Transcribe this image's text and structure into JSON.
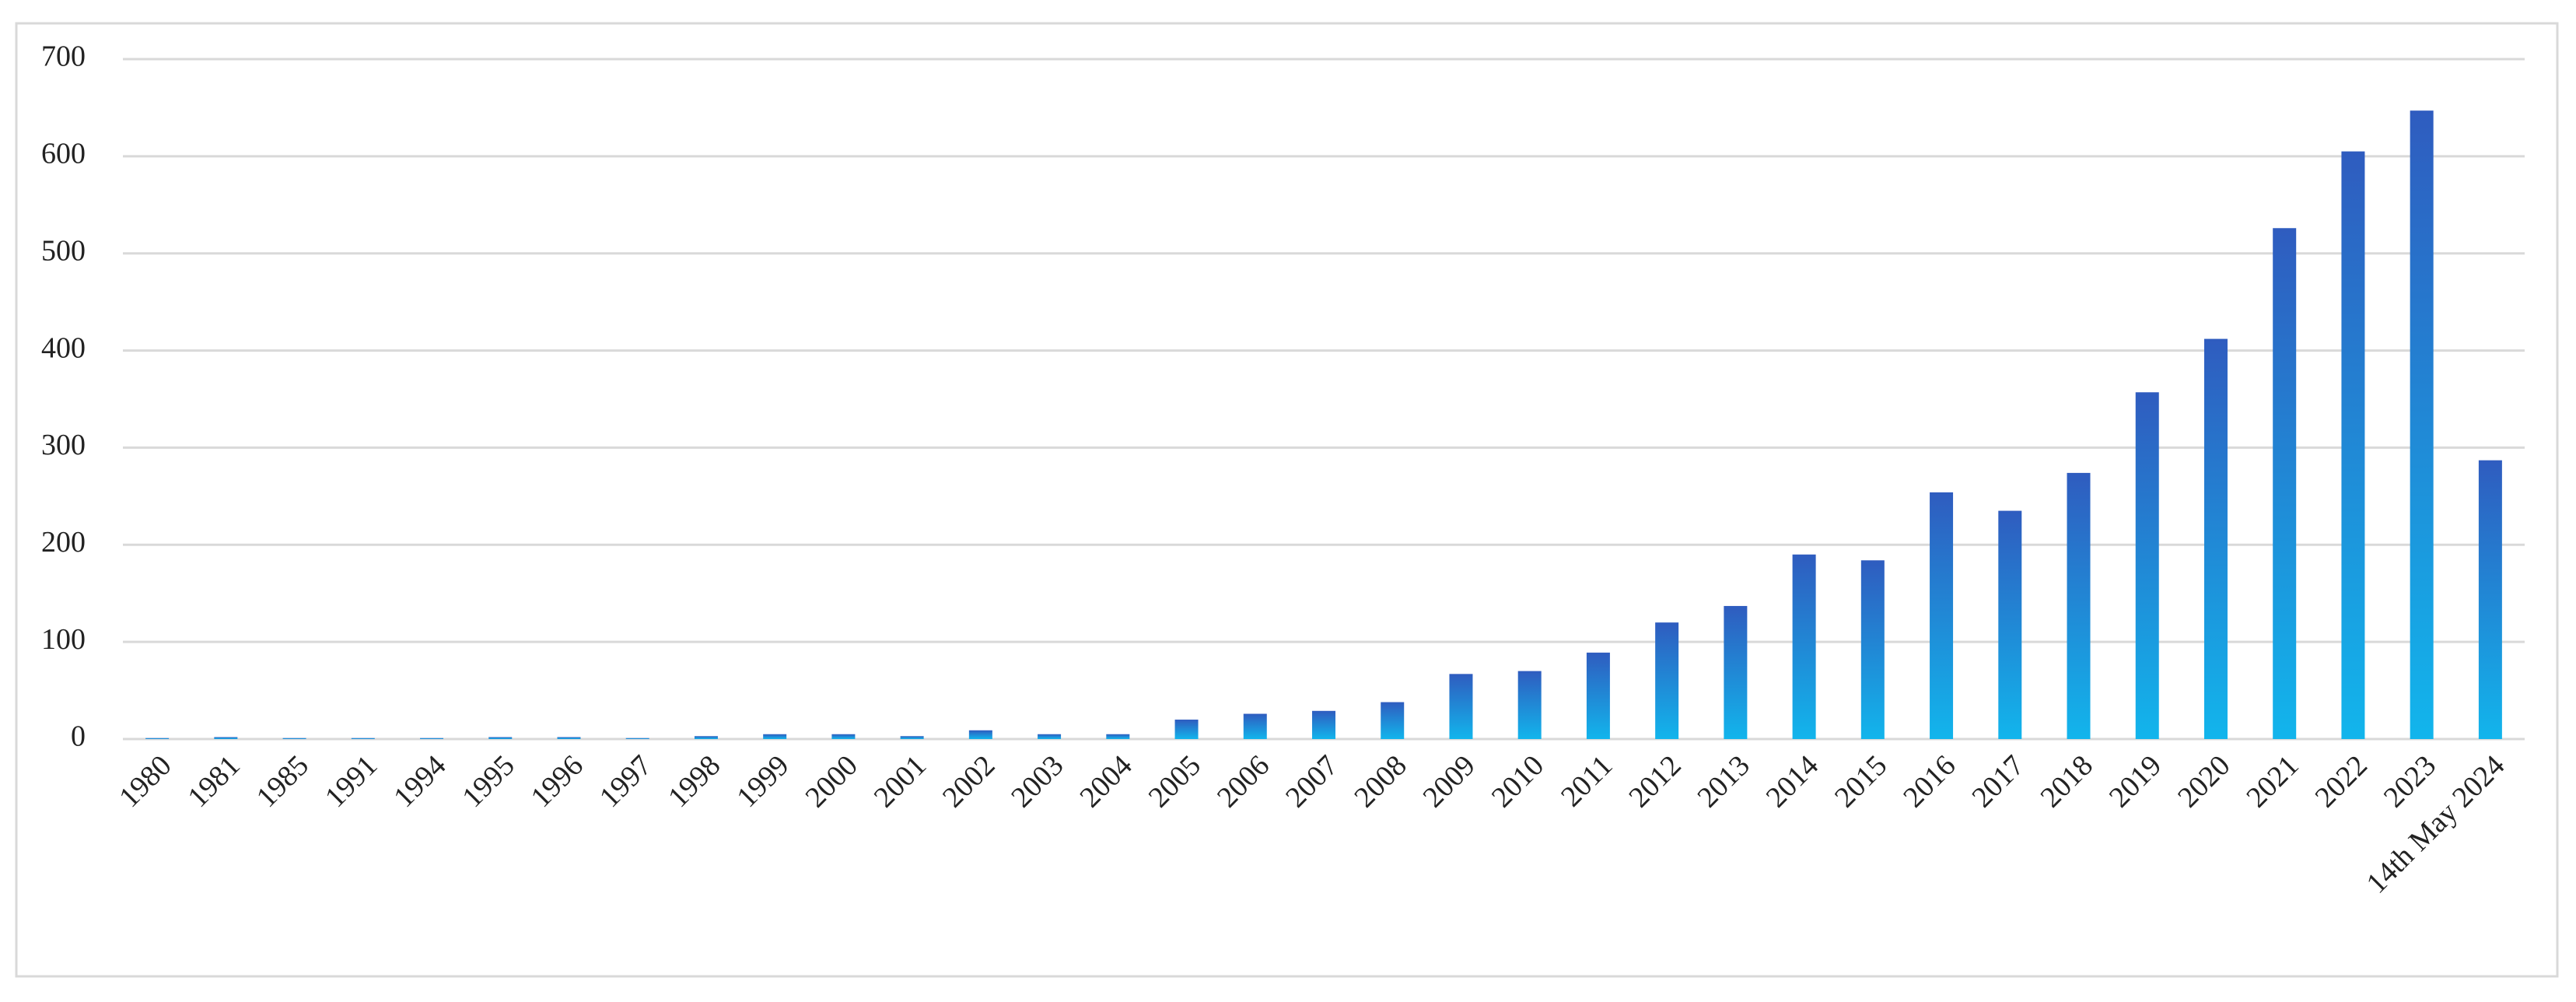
{
  "chart_data": {
    "type": "bar",
    "categories": [
      "1980",
      "1981",
      "1985",
      "1991",
      "1994",
      "1995",
      "1996",
      "1997",
      "1998",
      "1999",
      "2000",
      "2001",
      "2002",
      "2003",
      "2004",
      "2005",
      "2006",
      "2007",
      "2008",
      "2009",
      "2010",
      "2011",
      "2012",
      "2013",
      "2014",
      "2015",
      "2016",
      "2017",
      "2018",
      "2019",
      "2020",
      "2021",
      "2022",
      "2023",
      "14th May 2024"
    ],
    "values": [
      1,
      2,
      1,
      1,
      1,
      2,
      2,
      1,
      3,
      5,
      5,
      3,
      9,
      5,
      5,
      20,
      26,
      29,
      38,
      67,
      70,
      89,
      120,
      137,
      190,
      184,
      254,
      235,
      274,
      357,
      412,
      526,
      605,
      647,
      287
    ],
    "gradient": [
      "#2f5cbf",
      "#12b5ec"
    ],
    "ylim": [
      0,
      700
    ],
    "yticks": [
      0,
      100,
      200,
      300,
      400,
      500,
      600,
      700
    ],
    "grid": true
  }
}
